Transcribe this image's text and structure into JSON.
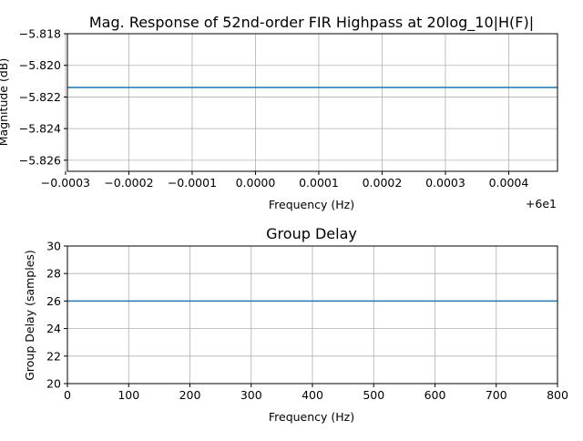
{
  "chart_data": [
    {
      "type": "line",
      "title": "Mag. Response of 52nd-order FIR Highpass at 20log_10|H(F)|",
      "xlabel": "Frequency (Hz)",
      "ylabel": "Magnitude (dB)",
      "x_offset_label": "+6e1",
      "xlim": [
        -0.000297,
        0.000477
      ],
      "ylim": [
        -5.8267,
        -5.818
      ],
      "xticks": [
        -0.0003,
        -0.0002,
        -0.0001,
        0.0,
        0.0001,
        0.0002,
        0.0003,
        0.0004
      ],
      "xtick_labels": [
        "−0.0003",
        "−0.0002",
        "−0.0001",
        "0.0000",
        "0.0001",
        "0.0002",
        "0.0003",
        "0.0004"
      ],
      "yticks": [
        -5.826,
        -5.824,
        -5.822,
        -5.82,
        -5.818
      ],
      "ytick_labels": [
        "−5.826",
        "−5.824",
        "−5.822",
        "−5.820",
        "−5.818"
      ],
      "grid": true,
      "series": [
        {
          "x": [
            -0.000297,
            0.000477
          ],
          "values": [
            -5.8214,
            -5.8214
          ],
          "color": "#1f77b4"
        }
      ]
    },
    {
      "type": "line",
      "title": "Group Delay",
      "xlabel": "Frequency (Hz)",
      "ylabel": "Group Delay (samples)",
      "xlim": [
        0,
        800
      ],
      "ylim": [
        20,
        30
      ],
      "xticks": [
        0,
        100,
        200,
        300,
        400,
        500,
        600,
        700,
        800
      ],
      "xtick_labels": [
        "0",
        "100",
        "200",
        "300",
        "400",
        "500",
        "600",
        "700",
        "800"
      ],
      "yticks": [
        20,
        22,
        24,
        26,
        28,
        30
      ],
      "ytick_labels": [
        "20",
        "22",
        "24",
        "26",
        "28",
        "30"
      ],
      "grid": true,
      "series": [
        {
          "x": [
            0,
            800
          ],
          "values": [
            26,
            26
          ],
          "color": "#1f77b4"
        }
      ]
    }
  ]
}
